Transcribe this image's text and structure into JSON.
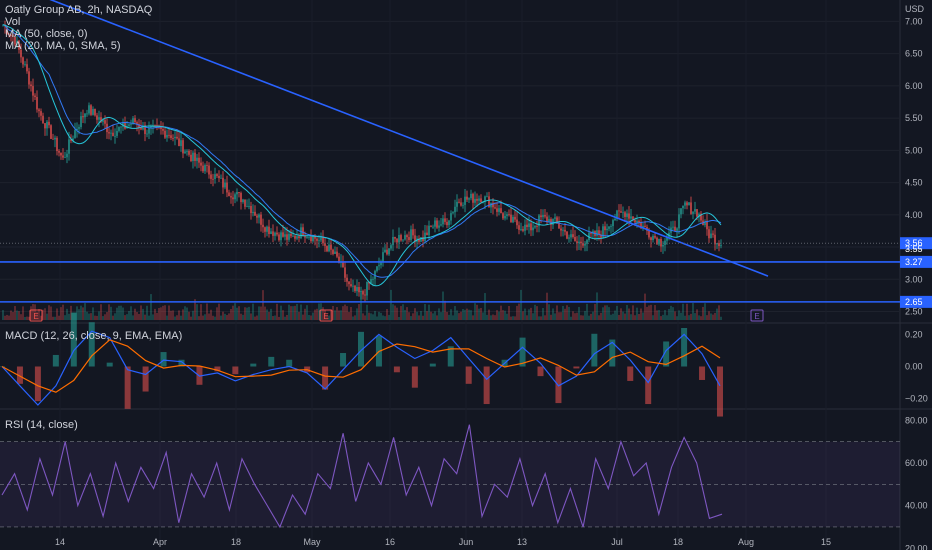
{
  "header": {
    "title": "Oatly Group AB, 2h, NASDAQ",
    "vol_label": "Vol",
    "ma1_label": "MA (50, close, 0)",
    "ma2_label": "MA (20, MA, 0, SMA, 5)",
    "macd_label": "MACD (12, 26, close, 9, EMA, EMA)",
    "rsi_label": "RSI (14, close)"
  },
  "colors": {
    "background": "#131722",
    "candle_up": "#26a69a",
    "candle_down": "#ef5350",
    "trendline": "#2962ff",
    "ma1": "#3179f5",
    "ma2": "#26c6da",
    "macd_line": "#2962ff",
    "signal_line": "#ff6d00",
    "rsi_line": "#7e57c2",
    "earnings": "#ef5350",
    "earnings_upcoming": "#7e57c2"
  },
  "chart_data": [
    {
      "type": "candlestick",
      "title": "Oatly Group AB, 2h, NASDAQ",
      "currency": "USD",
      "y_ticks": [
        "7.00",
        "6.50",
        "6.00",
        "5.50",
        "5.00",
        "4.50",
        "4.00",
        "3.50",
        "3.00",
        "2.50"
      ],
      "ylim": [
        2.4,
        7.3
      ],
      "x_ticks": [
        "14",
        "Apr",
        "18",
        "May",
        "16",
        "Jun",
        "13",
        "Jul",
        "18",
        "Aug",
        "15"
      ],
      "close_series": [
        6.95,
        6.72,
        6.2,
        5.6,
        5.25,
        4.85,
        5.3,
        5.65,
        5.5,
        5.28,
        5.35,
        5.45,
        5.3,
        5.32,
        5.25,
        5.05,
        4.85,
        4.7,
        4.55,
        4.35,
        4.25,
        4.05,
        3.8,
        3.7,
        3.62,
        3.75,
        3.65,
        3.52,
        3.3,
        2.85,
        2.75,
        3.05,
        3.45,
        3.65,
        3.7,
        3.62,
        3.85,
        3.88,
        4.22,
        4.25,
        4.28,
        4.15,
        3.95,
        3.85,
        3.78,
        3.95,
        3.9,
        3.72,
        3.55,
        3.65,
        3.72,
        3.95,
        4.05,
        3.9,
        3.72,
        3.58,
        3.75,
        4.15,
        4.05,
        3.7,
        3.56
      ],
      "price_tags": [
        "3.56",
        "3.55"
      ],
      "support_levels": [
        {
          "label": "3.27",
          "value": 3.27
        },
        {
          "label": "2.65",
          "value": 2.65
        }
      ],
      "trendline": {
        "from": [
          0.0,
          7.4
        ],
        "to": [
          1.0,
          3.05
        ]
      },
      "earnings_markers": [
        {
          "label": "E",
          "status": "past"
        },
        {
          "label": "E",
          "status": "past"
        },
        {
          "label": "E",
          "status": "upcoming"
        }
      ],
      "series": [
        {
          "name": "MA (50, close, 0)"
        },
        {
          "name": "MA (20, MA, 0, SMA, 5)"
        }
      ]
    },
    {
      "type": "line",
      "title": "MACD (12, 26, close, 9, EMA, EMA)",
      "y_ticks": [
        "0.20",
        "0.00",
        "−0.20"
      ],
      "ylim": [
        -0.24,
        0.24
      ],
      "macd_series": [
        0.0,
        -0.12,
        -0.24,
        -0.12,
        0.1,
        0.22,
        0.18,
        -0.02,
        -0.05,
        0.04,
        0.03,
        -0.06,
        -0.04,
        -0.09,
        -0.05,
        -0.02,
        0.0,
        -0.04,
        -0.14,
        -0.02,
        0.1,
        0.2,
        0.12,
        0.05,
        0.1,
        0.18,
        0.05,
        -0.08,
        0.02,
        0.12,
        0.02,
        -0.12,
        -0.06,
        0.08,
        0.15,
        0.04,
        -0.1,
        0.1,
        0.2,
        0.08,
        -0.12
      ]
    },
    {
      "type": "line",
      "title": "RSI (14, close)",
      "y_ticks": [
        "80.00",
        "60.00",
        "40.00",
        "20.00"
      ],
      "ylim": [
        22,
        83
      ],
      "band": [
        30,
        70
      ],
      "rsi_series": [
        45,
        55,
        38,
        62,
        45,
        70,
        40,
        55,
        35,
        60,
        42,
        58,
        48,
        65,
        32,
        55,
        44,
        60,
        38,
        62,
        50,
        40,
        30,
        45,
        36,
        55,
        48,
        74,
        42,
        60,
        50,
        72,
        45,
        58,
        40,
        62,
        55,
        78,
        35,
        50,
        44,
        62,
        40,
        55,
        32,
        48,
        30,
        62,
        48,
        70,
        54,
        60,
        36,
        58,
        72,
        60,
        34,
        36
      ]
    }
  ]
}
